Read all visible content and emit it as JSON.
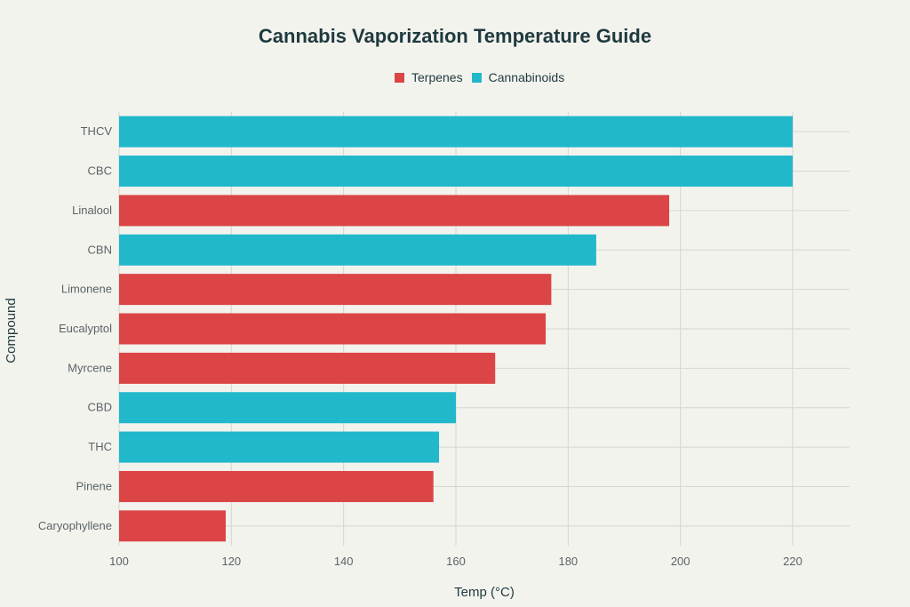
{
  "chart_data": {
    "type": "bar",
    "orientation": "horizontal",
    "title": "Cannabis Vaporization Temperature Guide",
    "xlabel": "Temp (°C)",
    "ylabel": "Compound",
    "xlim": [
      100,
      230
    ],
    "xticks": [
      100,
      120,
      140,
      160,
      180,
      200,
      220
    ],
    "grid": true,
    "legend_position": "top",
    "series_colors": {
      "Terpenes": "#db4546",
      "Cannabinoids": "#21b8cc"
    },
    "legend": [
      "Terpenes",
      "Cannabinoids"
    ],
    "categories": [
      "THCV",
      "CBC",
      "Linalool",
      "CBN",
      "Limonene",
      "Eucalyptol",
      "Myrcene",
      "CBD",
      "THC",
      "Pinene",
      "Caryophyllene"
    ],
    "values": [
      220,
      220,
      198,
      185,
      177,
      176,
      167,
      160,
      157,
      156,
      119
    ],
    "groups": [
      "Cannabinoids",
      "Cannabinoids",
      "Terpenes",
      "Cannabinoids",
      "Terpenes",
      "Terpenes",
      "Terpenes",
      "Cannabinoids",
      "Cannabinoids",
      "Terpenes",
      "Terpenes"
    ]
  }
}
